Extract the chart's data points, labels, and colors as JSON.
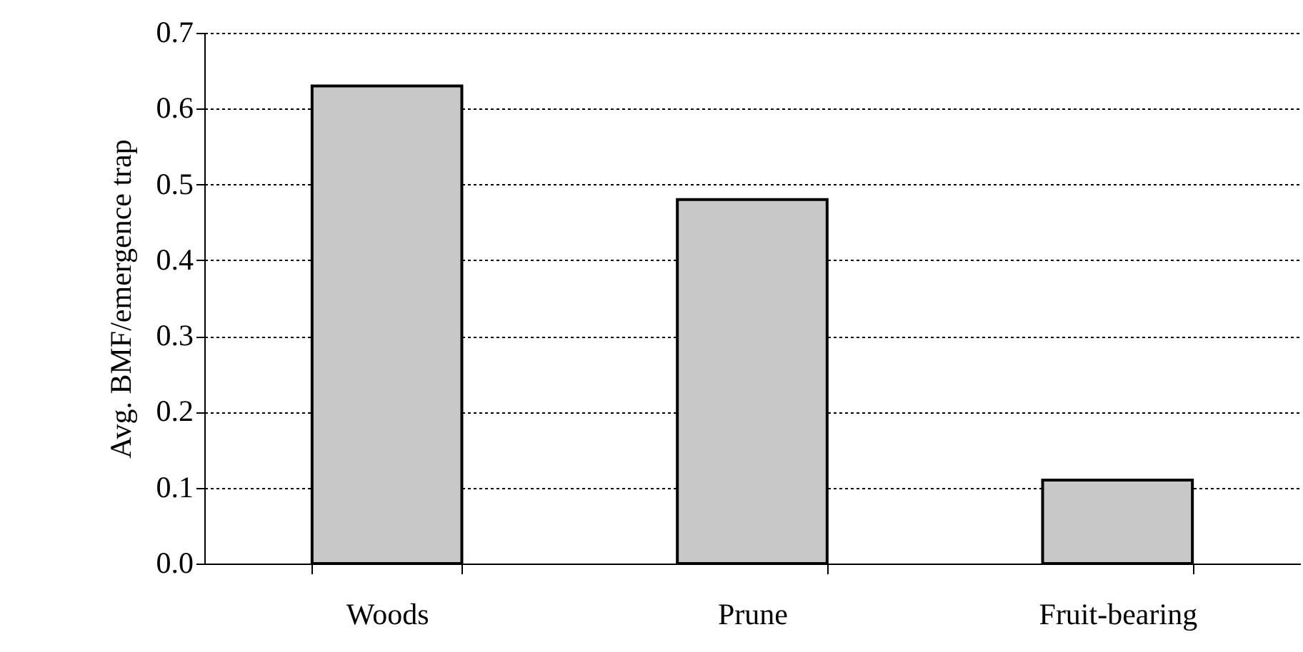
{
  "chart_data": {
    "type": "bar",
    "ylabel": "Avg. BMF/emergence trap",
    "categories": [
      "Woods",
      "Prune",
      "Fruit-bearing"
    ],
    "values": [
      0.63,
      0.48,
      0.11
    ],
    "color": "#c8c8c8",
    "ylim": [
      0,
      0.7
    ],
    "yticks": [
      {
        "value": 0,
        "label": "0.0"
      },
      0.1,
      0.2,
      0.3,
      0.4,
      0.5,
      0.6,
      0.7
    ],
    "grid": "y"
  }
}
